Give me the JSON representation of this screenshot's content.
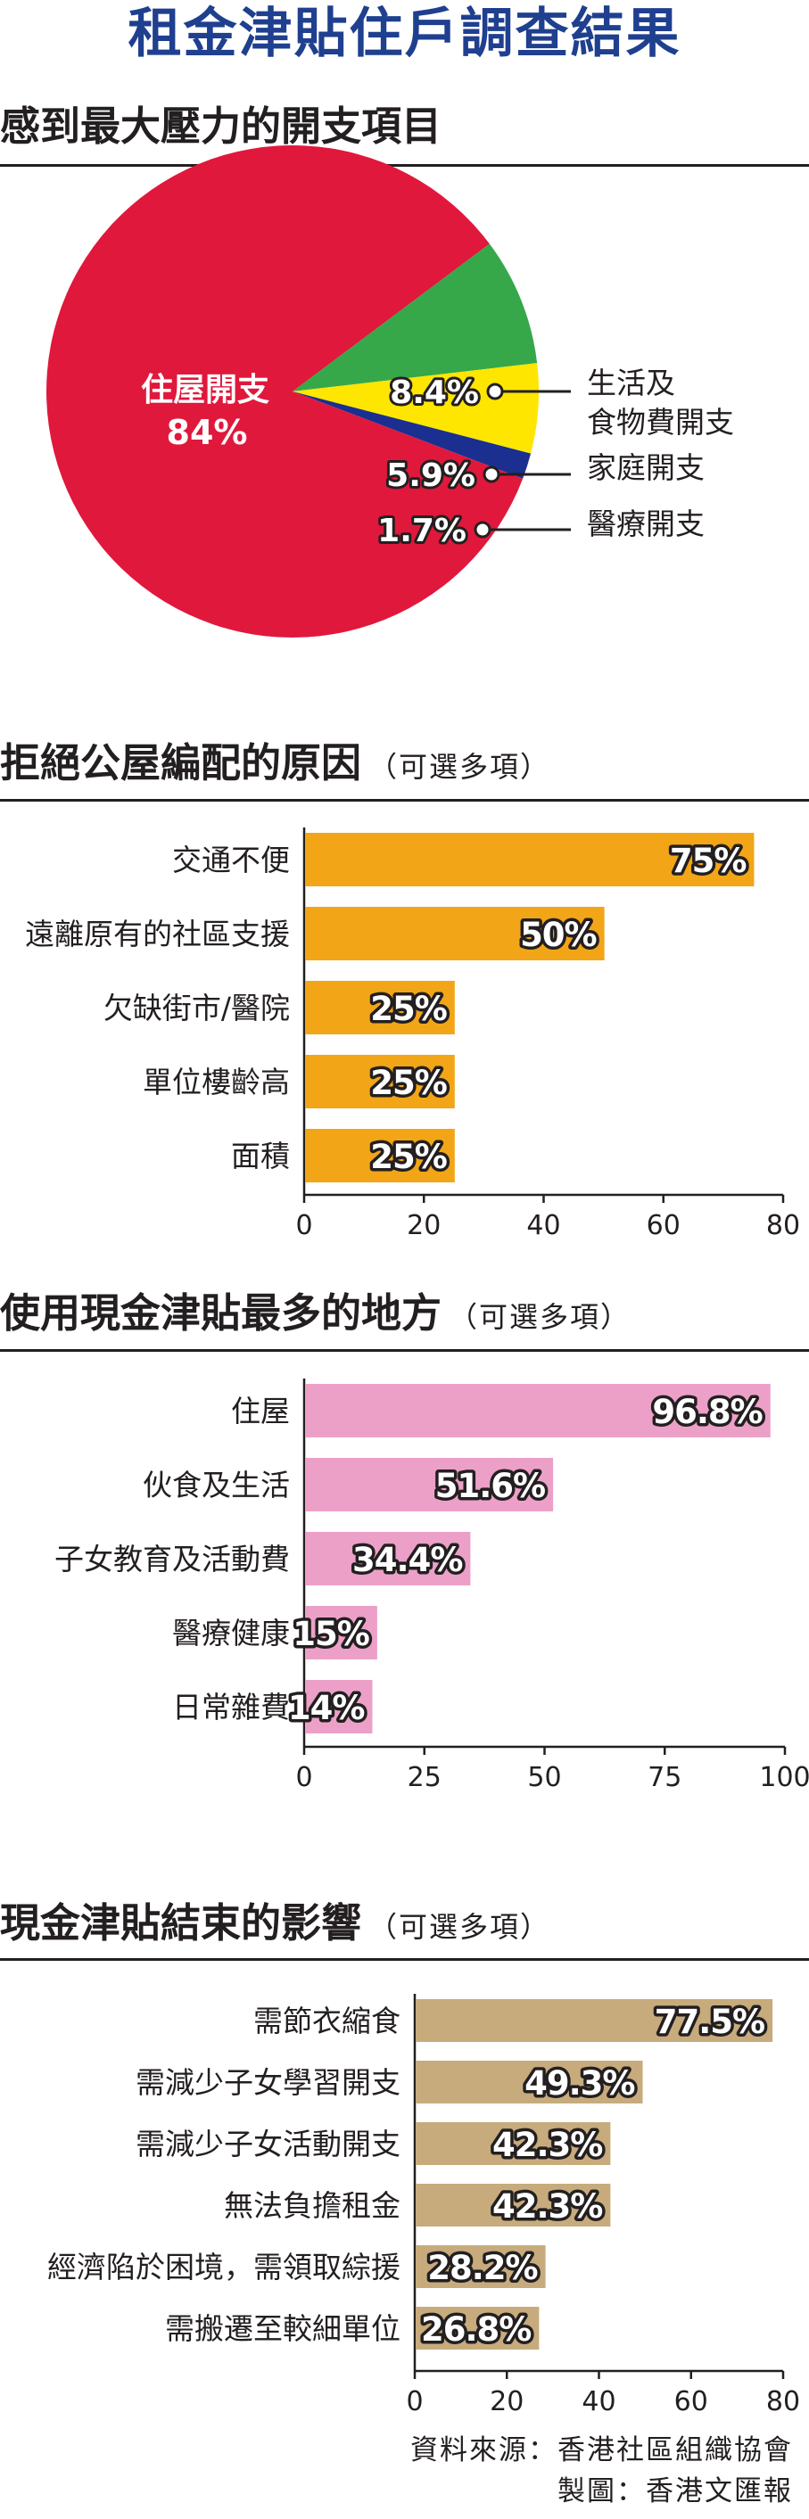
{
  "page": {
    "title": "租金津貼住戶調查結果",
    "source_line": "資料來源：香港社區組織協會",
    "credit_line": "製圖：香港文匯報"
  },
  "chart_data": [
    {
      "type": "pie",
      "title": "感到最大壓力的開支項目",
      "slices": [
        {
          "label": "住屋開支",
          "value": 84,
          "value_label": "84%",
          "color": "#e0183c"
        },
        {
          "label": "生活及食物費開支",
          "value": 8.4,
          "value_label": "8.4%",
          "color": "#36a84a"
        },
        {
          "label": "家庭開支",
          "value": 5.9,
          "value_label": "5.9%",
          "color": "#ffe600"
        },
        {
          "label": "醫療開支",
          "value": 1.7,
          "value_label": "1.7%",
          "color": "#1a2f8f"
        }
      ]
    },
    {
      "type": "bar",
      "orientation": "horizontal",
      "title": "拒絕公屋編配的原因",
      "note": "（可選多項）",
      "color": "#f2a516",
      "categories": [
        "交通不便",
        "遠離原有的社區支援",
        "欠缺街市/醫院",
        "單位樓齡高",
        "面積"
      ],
      "values": [
        75,
        50,
        25,
        25,
        25
      ],
      "value_labels": [
        "75%",
        "50%",
        "25%",
        "25%",
        "25%"
      ],
      "xlim": [
        0,
        80
      ],
      "xticks": [
        "0",
        "20",
        "40",
        "60",
        "80"
      ]
    },
    {
      "type": "bar",
      "orientation": "horizontal",
      "title": "使用現金津貼最多的地方",
      "note": "（可選多項）",
      "color": "#eca0c8",
      "categories": [
        "住屋",
        "伙食及生活",
        "子女教育及活動費",
        "醫療健康",
        "日常雜費"
      ],
      "values": [
        96.8,
        51.6,
        34.4,
        15,
        14
      ],
      "value_labels": [
        "96.8%",
        "51.6%",
        "34.4%",
        "15%",
        "14%"
      ],
      "xlim": [
        0,
        100
      ],
      "xticks": [
        "0",
        "25",
        "50",
        "75",
        "100"
      ]
    },
    {
      "type": "bar",
      "orientation": "horizontal",
      "title": "現金津貼結束的影響",
      "note": "（可選多項）",
      "color": "#c7ab7d",
      "categories": [
        "需節衣縮食",
        "需減少子女學習開支",
        "需減少子女活動開支",
        "無法負擔租金",
        "經濟陷於困境，需領取綜援",
        "需搬遷至較細單位"
      ],
      "values": [
        77.5,
        49.3,
        42.3,
        42.3,
        28.2,
        26.8
      ],
      "value_labels": [
        "77.5%",
        "49.3%",
        "42.3%",
        "42.3%",
        "28.2%",
        "26.8%"
      ],
      "xlim": [
        0,
        80
      ],
      "xticks": [
        "0",
        "20",
        "40",
        "60",
        "80"
      ]
    }
  ]
}
